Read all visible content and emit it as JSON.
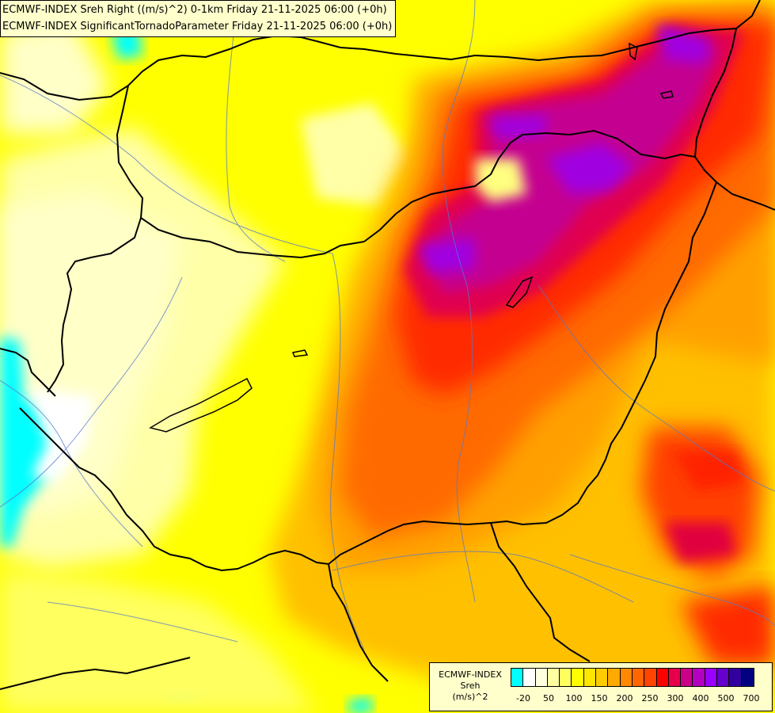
{
  "titles": {
    "line1": "ECMWF-INDEX Sreh Right ((m/s)^2) 0-1km Friday 21-11-2025 06:00 (+0h)",
    "line2": "ECMWF-INDEX SignificantTornadoParameter Friday 21-11-2025 06:00 (+0h)"
  },
  "legend": {
    "source": "ECMWF-INDEX",
    "parameter": "Sreh",
    "unit": "(m/s)^2",
    "colors": [
      "#00ffff",
      "#ffffff",
      "#ffffe0",
      "#ffffa0",
      "#ffff60",
      "#ffff00",
      "#ffe600",
      "#ffcc00",
      "#ffaa00",
      "#ff8800",
      "#ff6600",
      "#ff4400",
      "#ff0000",
      "#e6004c",
      "#cc0088",
      "#b400c0",
      "#9900ff",
      "#6600cc",
      "#3300a0",
      "#000080"
    ],
    "ticks": [
      "-20",
      "50",
      "100",
      "150",
      "200",
      "250",
      "300",
      "400",
      "500",
      "700"
    ]
  }
}
